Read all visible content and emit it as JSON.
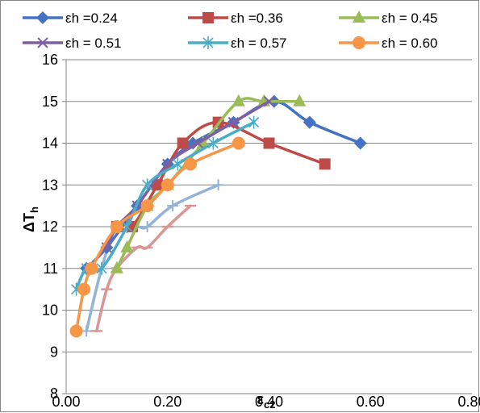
{
  "chart_data": {
    "type": "line",
    "xlabel": "εc2",
    "ylabel": "ΔTh",
    "xlim": [
      0,
      0.8
    ],
    "ylim": [
      8,
      16
    ],
    "x_ticks": [
      "0.00",
      "0.20",
      "0.40",
      "0.60",
      "0.80"
    ],
    "y_ticks": [
      "8",
      "9",
      "10",
      "11",
      "12",
      "13",
      "14",
      "15",
      "16"
    ],
    "x_tick_values": [
      0,
      0.2,
      0.4,
      0.6,
      0.8
    ],
    "y_tick_values": [
      8,
      9,
      10,
      11,
      12,
      13,
      14,
      15,
      16
    ],
    "grid": "horizontal",
    "legend_position": "top",
    "series": [
      {
        "name": "εh =0.24",
        "color": "#4472C4",
        "marker": "diamond",
        "x": [
          0.04,
          0.08,
          0.14,
          0.2,
          0.25,
          0.33,
          0.41,
          0.48,
          0.58
        ],
        "y": [
          11.0,
          11.5,
          12.5,
          13.5,
          14.0,
          14.5,
          15.0,
          14.5,
          14.0
        ]
      },
      {
        "name": "εh =0.36",
        "color": "#BE4B48",
        "marker": "square",
        "x": [
          0.1,
          0.13,
          0.18,
          0.23,
          0.3,
          0.4,
          0.51
        ],
        "y": [
          12.0,
          12.0,
          13.0,
          14.0,
          14.5,
          14.0,
          13.5
        ]
      },
      {
        "name": "εh = 0.45",
        "color": "#9BBB59",
        "marker": "triangle",
        "x": [
          0.1,
          0.12,
          0.16,
          0.2,
          0.27,
          0.34,
          0.39,
          0.46
        ],
        "y": [
          11.0,
          11.5,
          12.5,
          13.0,
          14.0,
          15.0,
          15.0,
          15.0
        ]
      },
      {
        "name": "εh = 0.51",
        "color": "#7F5FA1",
        "marker": "x",
        "x": [
          0.08,
          0.1,
          0.14,
          0.2,
          0.26,
          0.33,
          0.4
        ],
        "y": [
          11.5,
          12.0,
          12.5,
          13.5,
          14.0,
          14.5,
          15.0
        ]
      },
      {
        "name": "εh = 0.57",
        "color": "#4BACC6",
        "marker": "star",
        "x": [
          0.02,
          0.04,
          0.07,
          0.12,
          0.16,
          0.22,
          0.29,
          0.37
        ],
        "y": [
          10.5,
          11.0,
          11.0,
          12.0,
          13.0,
          13.5,
          14.0,
          14.5
        ]
      },
      {
        "name": "εh = 0.60",
        "color": "#F79646",
        "marker": "circle",
        "x": [
          0.02,
          0.035,
          0.05,
          0.1,
          0.16,
          0.2,
          0.245,
          0.34
        ],
        "y": [
          9.5,
          10.5,
          11.0,
          12.0,
          12.5,
          13.0,
          13.5,
          14.0
        ]
      },
      {
        "color": "#95B3D7",
        "marker": "plus",
        "x": [
          0.04,
          0.07,
          0.1,
          0.14,
          0.16,
          0.21,
          0.3
        ],
        "y": [
          9.5,
          11.0,
          12.0,
          12.0,
          12.0,
          12.5,
          13.0
        ]
      },
      {
        "color": "#D99694",
        "marker": "dash",
        "x": [
          0.06,
          0.08,
          0.1,
          0.14,
          0.16,
          0.2,
          0.245
        ],
        "y": [
          9.5,
          10.5,
          11.0,
          11.5,
          11.5,
          12.0,
          12.5
        ]
      }
    ]
  }
}
